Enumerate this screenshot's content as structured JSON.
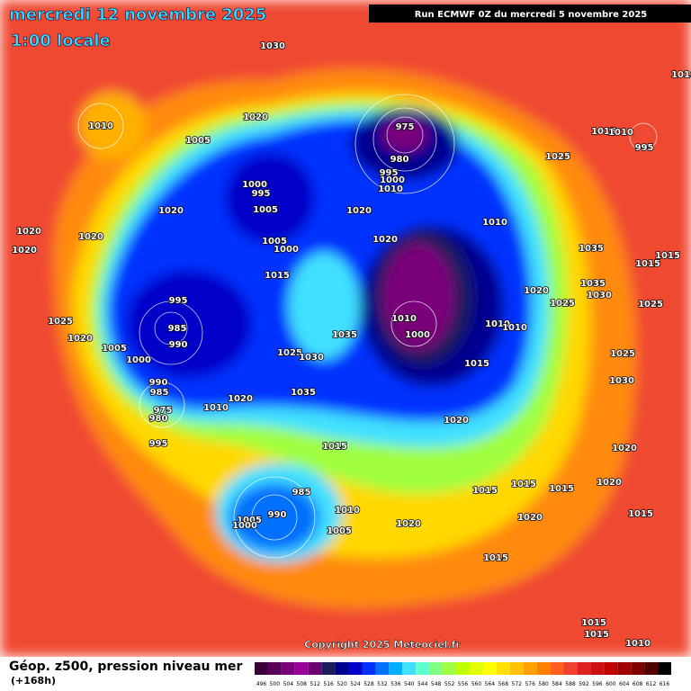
{
  "header": {
    "date": "mercredi 12 novembre 2025",
    "time": "1:00 locale",
    "run": "Run ECMWF 0Z du mercredi 5 novembre 2025"
  },
  "copyright": "Copyright 2025 Meteociel.fr",
  "legend": {
    "title": "Géop. z500, pression niveau mer",
    "lead": "(+168h)",
    "labels": [
      496,
      500,
      504,
      508,
      512,
      516,
      520,
      524,
      528,
      532,
      536,
      540,
      544,
      548,
      552,
      556,
      560,
      564,
      568,
      572,
      576,
      580,
      584,
      588,
      592,
      596,
      600,
      604,
      608,
      612,
      616
    ],
    "colors": [
      "#3a0038",
      "#5a005a",
      "#7a007a",
      "#9a009a",
      "#6a0070",
      "#1c1c5c",
      "#000090",
      "#0000c8",
      "#0030ff",
      "#0070ff",
      "#00b0ff",
      "#40e0ff",
      "#60ffd0",
      "#80ff80",
      "#a0ff40",
      "#c0ff00",
      "#e0ff00",
      "#ffff00",
      "#ffe000",
      "#ffc000",
      "#ffa000",
      "#ff8000",
      "#ff6020",
      "#f04030",
      "#e02020",
      "#d01010",
      "#c00000",
      "#a00000",
      "#800000",
      "#500000",
      "#000000"
    ]
  },
  "isobars": [
    1030,
    1010,
    1020,
    1005,
    1000,
    995,
    1005,
    1020,
    1020,
    1020,
    1020,
    1005,
    1000,
    1015,
    995,
    985,
    990,
    1025,
    1020,
    1005,
    1000,
    1035,
    1025,
    1030,
    1035,
    990,
    985,
    975,
    980,
    1010,
    1020,
    995,
    1015,
    975,
    980,
    995,
    1000,
    1010,
    1020,
    1020,
    1010,
    1025,
    1015,
    1010,
    995,
    1035,
    1015,
    1015,
    1035,
    1030,
    1020,
    1025,
    1010,
    1000,
    1010,
    1010,
    1025,
    1015,
    1025,
    1030,
    1020,
    1020,
    1015,
    1015,
    1015,
    1020,
    1020,
    1015,
    985,
    990,
    1005,
    1000,
    1010,
    1020,
    1005,
    1015,
    1015,
    1015,
    1010,
    1010
  ]
}
